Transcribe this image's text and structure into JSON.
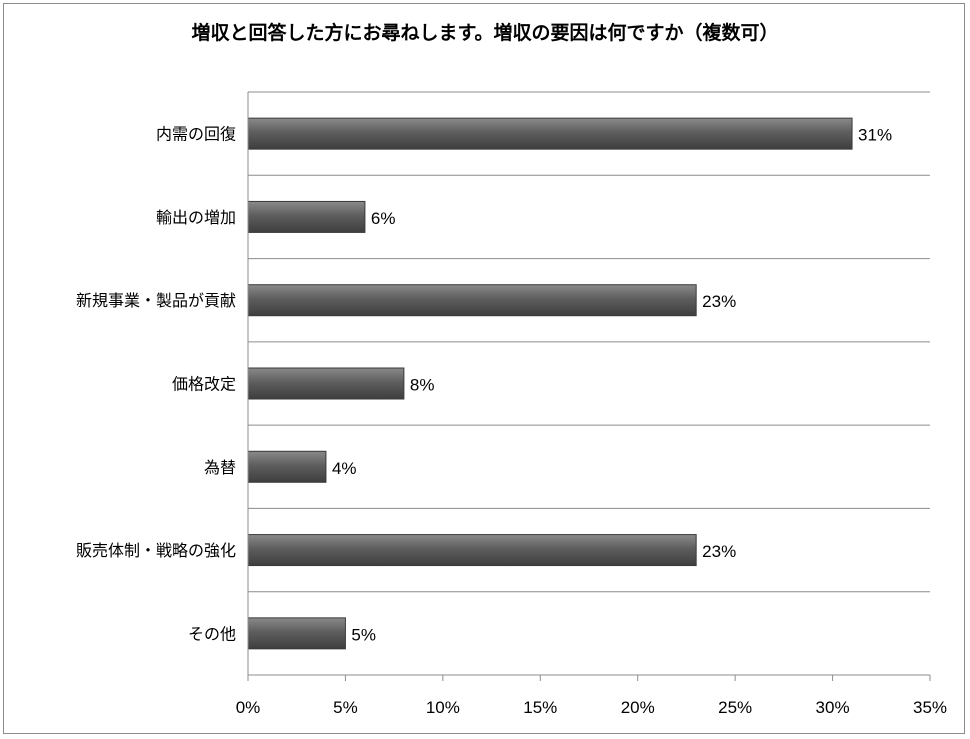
{
  "chart_data": {
    "type": "bar",
    "orientation": "horizontal",
    "title": "増収と回答した方にお尋ねします。増収の要因は何ですか（複数可）",
    "categories": [
      "内需の回復",
      "輸出の増加",
      "新規事業・製品が貢献",
      "価格改定",
      "為替",
      "販売体制・戦略の強化",
      "その他"
    ],
    "values": [
      31,
      6,
      23,
      8,
      4,
      23,
      5
    ],
    "value_labels": [
      "31%",
      "6%",
      "23%",
      "8%",
      "4%",
      "23%",
      "5%"
    ],
    "xlim": [
      0,
      35
    ],
    "xticks": [
      0,
      5,
      10,
      15,
      20,
      25,
      30,
      35
    ],
    "xtick_labels": [
      "0%",
      "5%",
      "10%",
      "15%",
      "20%",
      "25%",
      "30%",
      "35%"
    ],
    "xlabel": "",
    "ylabel": "",
    "grid": "horizontal category separators",
    "legend": "none",
    "bar_color": "#5a5a5a"
  }
}
